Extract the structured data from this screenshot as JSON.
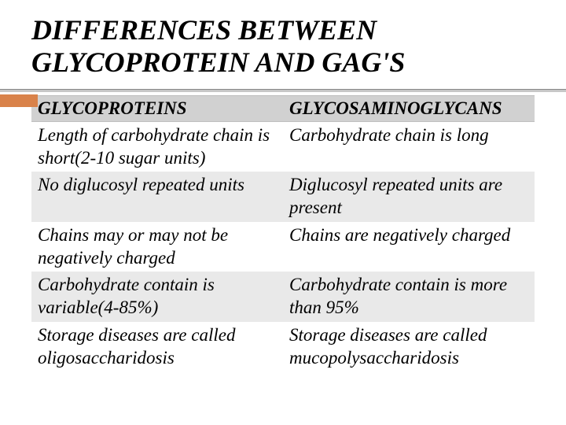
{
  "title": "DIFFERENCES BETWEEN GLYCOPROTEIN AND GAG'S",
  "table": {
    "headers": [
      "GLYCOPROTEINS",
      "GLYCOSAMINOGLYCANS"
    ],
    "rows": [
      [
        "Length of carbohydrate chain is short(2-10 sugar units)",
        "Carbohydrate chain is long"
      ],
      [
        "No diglucosyl repeated units",
        "Diglucosyl repeated units are present"
      ],
      [
        "Chains may or may not be negatively charged",
        "Chains are negatively charged"
      ],
      [
        "Carbohydrate contain is variable(4-85%)",
        "Carbohydrate contain is more than 95%"
      ],
      [
        "Storage diseases are called oligosaccharidosis",
        "Storage diseases are called mucopolysaccharidosis"
      ]
    ],
    "header_bg": "#d1d1d1",
    "row_odd_bg": "#e9e9e9",
    "row_even_bg": "#ffffff",
    "accent_color": "#d9824a",
    "font_family": "Times New Roman",
    "title_fontsize": 36,
    "cell_fontsize": 23
  }
}
